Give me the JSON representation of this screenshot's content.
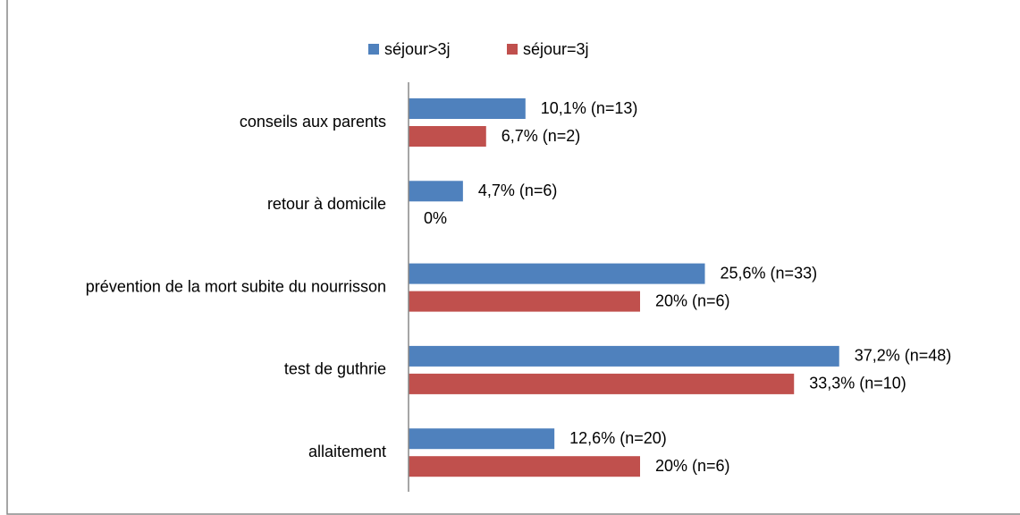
{
  "chart_data": {
    "type": "hbar",
    "categories": [
      "conseils aux parents",
      "retour à domicile",
      "prévention de la mort subite du nourrisson",
      "test de guthrie",
      "allaitement"
    ],
    "series": [
      {
        "name": "séjour>3j",
        "color": "#4f81bd",
        "values": [
          10.1,
          4.7,
          25.6,
          37.2,
          12.6
        ],
        "value_labels": [
          "10,1% (n=13)",
          "4,7% (n=6)",
          "25,6% (n=33)",
          "37,2% (n=48)",
          "12,6% (n=20)"
        ]
      },
      {
        "name": "séjour=3j",
        "color": "#c0504d",
        "values": [
          6.7,
          0,
          20,
          33.3,
          20
        ],
        "value_labels": [
          "6,7% (n=2)",
          "0%",
          "20% (n=6)",
          "33,3% (n=10)",
          "20% (n=6)"
        ]
      }
    ],
    "xlim": [
      0,
      40
    ],
    "legend": "top"
  }
}
